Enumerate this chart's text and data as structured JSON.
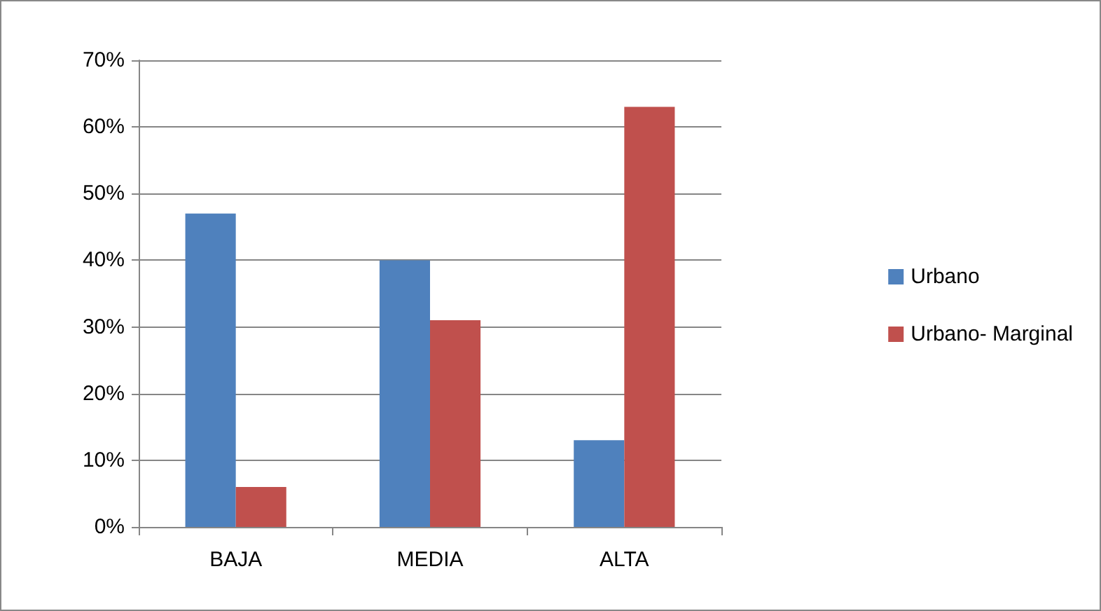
{
  "chart_data": {
    "type": "bar",
    "categories": [
      "BAJA",
      "MEDIA",
      "ALTA"
    ],
    "series": [
      {
        "name": "Urbano",
        "color": "#4f81bd",
        "values": [
          47,
          40,
          13
        ]
      },
      {
        "name": "Urbano- Marginal",
        "color": "#c0504d",
        "values": [
          6,
          31,
          63
        ]
      }
    ],
    "ylim": [
      0,
      70
    ],
    "yticks": [
      {
        "value": 0,
        "label": "0%"
      },
      {
        "value": 10,
        "label": "10%"
      },
      {
        "value": 20,
        "label": "20%"
      },
      {
        "value": 30,
        "label": "30%"
      },
      {
        "value": 40,
        "label": "40%"
      },
      {
        "value": 50,
        "label": "50%"
      },
      {
        "value": 60,
        "label": "60%"
      },
      {
        "value": 70,
        "label": "70%"
      }
    ],
    "grid": "y",
    "legend": "right"
  }
}
